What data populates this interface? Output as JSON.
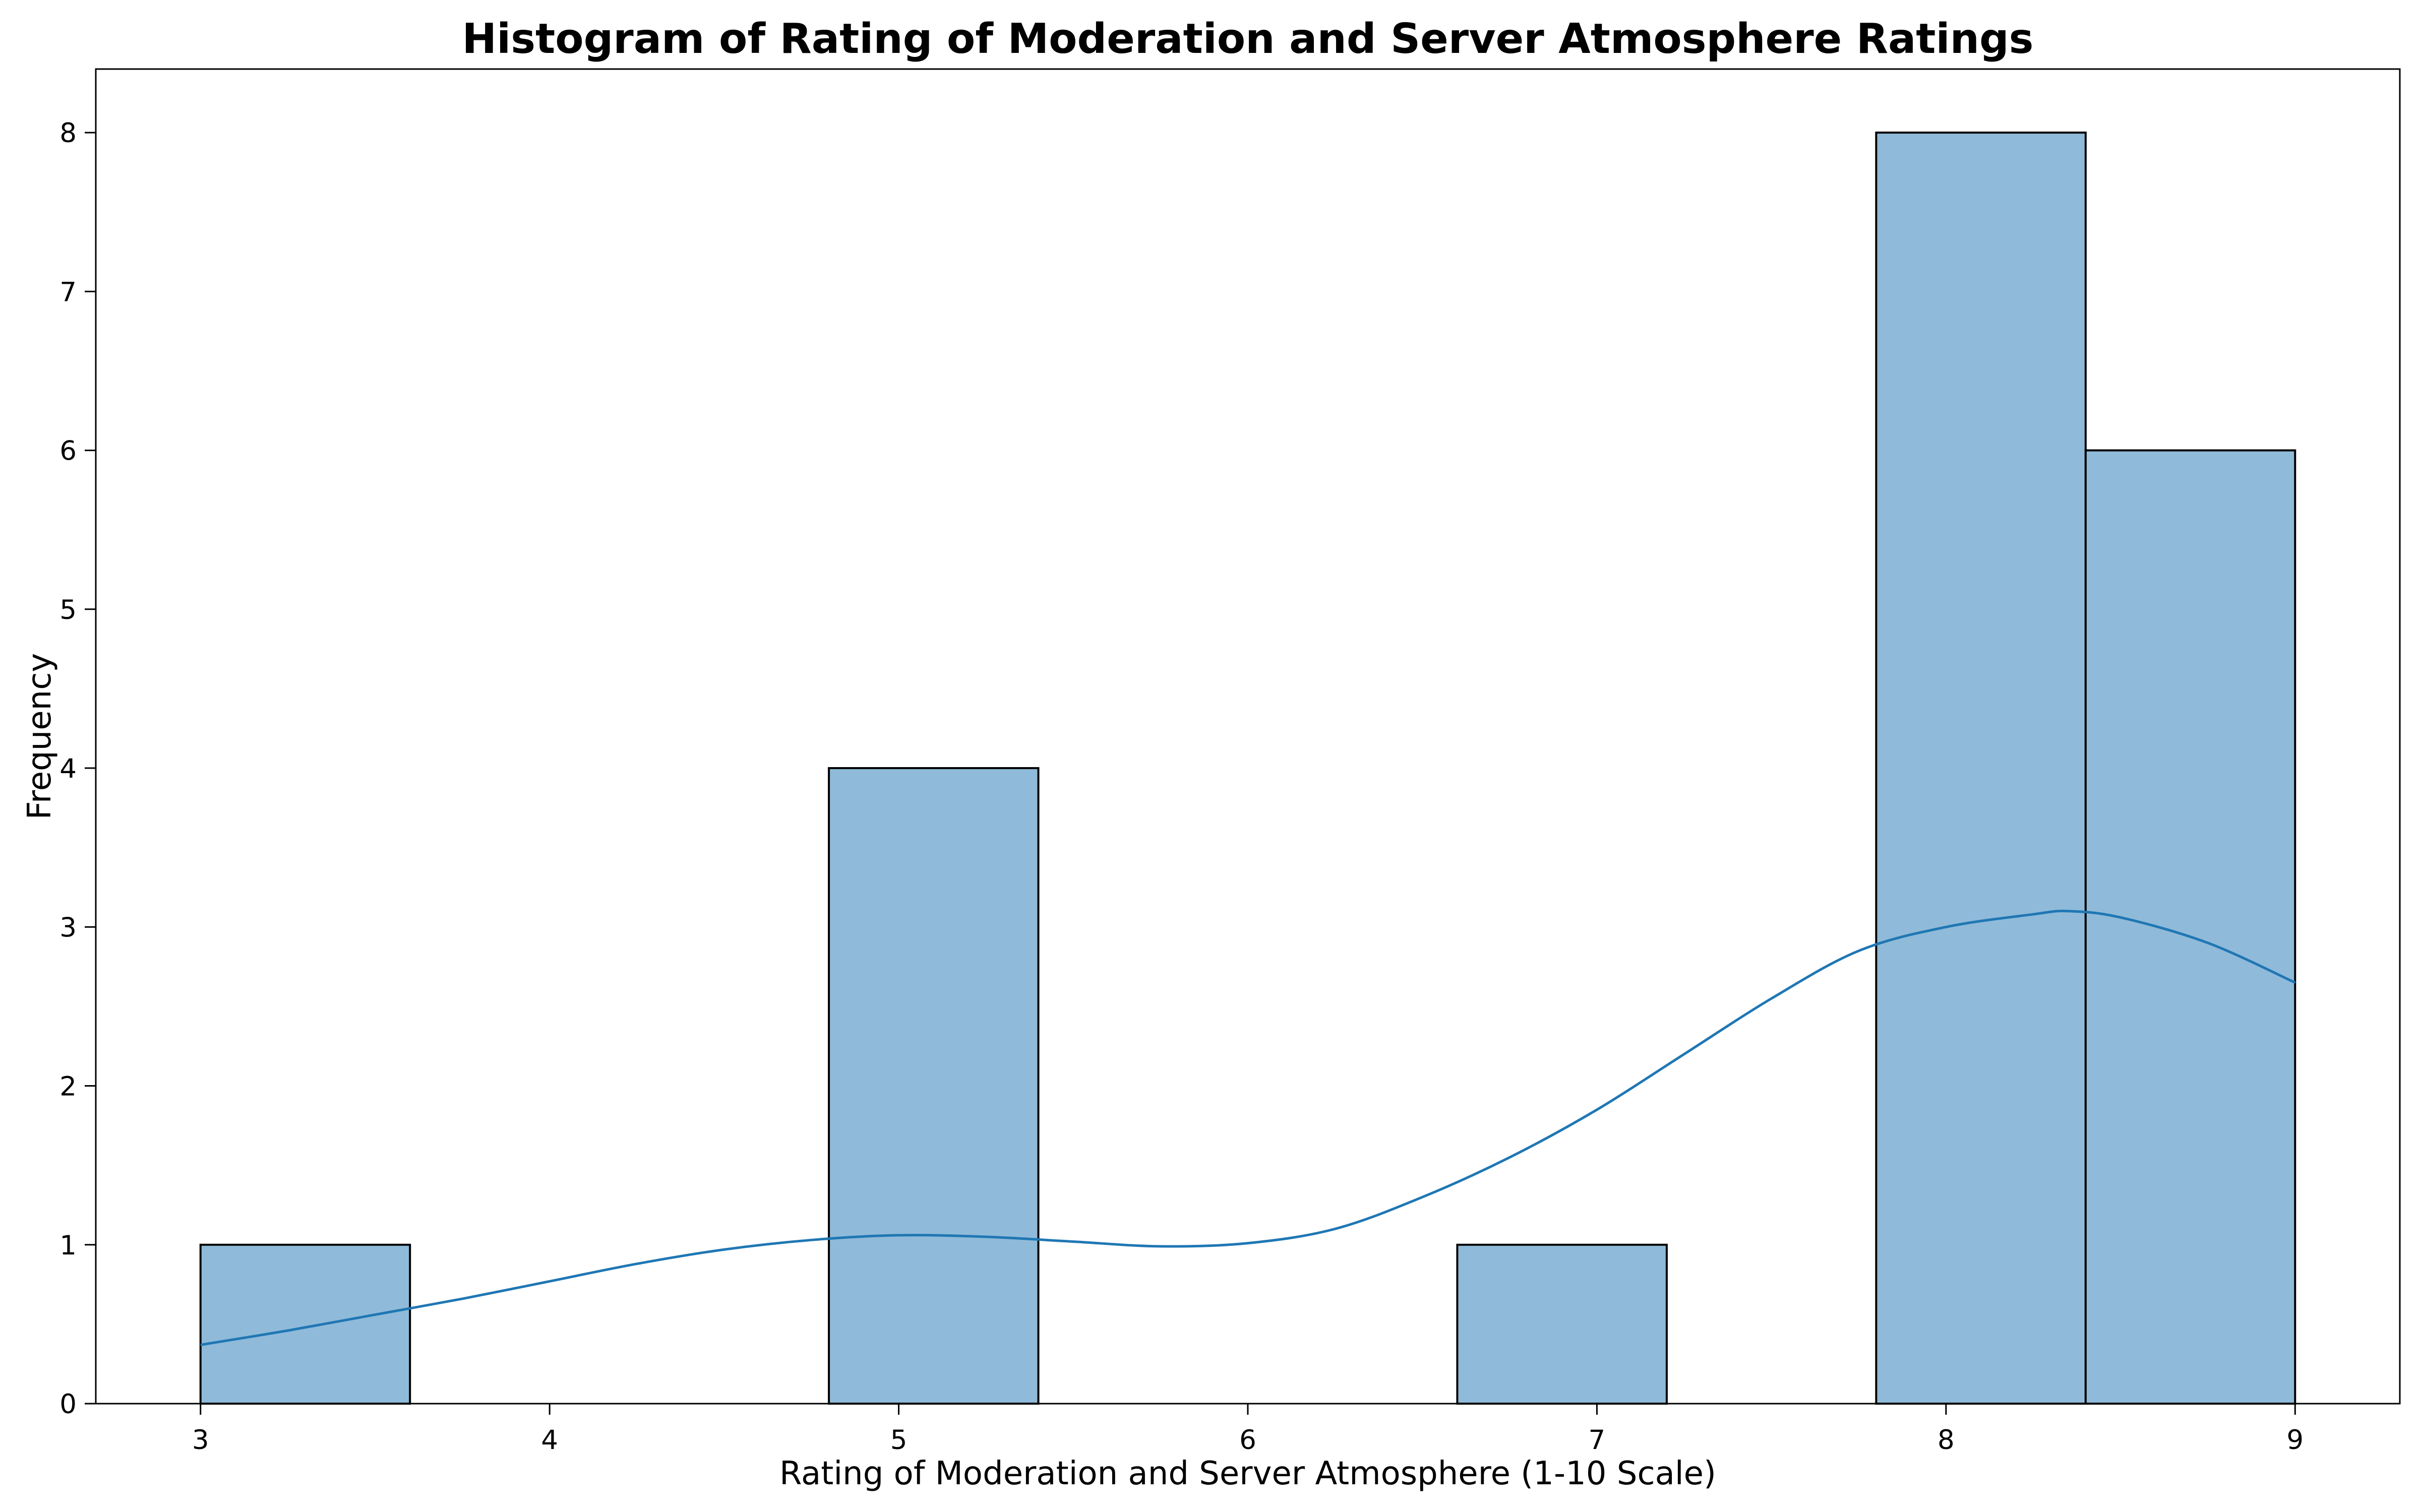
{
  "chart_data": {
    "type": "bar",
    "title": "Histogram of Rating of Moderation and Server Atmosphere Ratings",
    "xlabel": "Rating of Moderation and Server Atmosphere (1-10 Scale)",
    "ylabel": "Frequency",
    "xlim": [
      2.7,
      9.3
    ],
    "ylim": [
      0,
      8.4
    ],
    "x_ticks": [
      3,
      4,
      5,
      6,
      7,
      8,
      9
    ],
    "y_ticks": [
      0,
      1,
      2,
      3,
      4,
      5,
      6,
      7,
      8
    ],
    "bins": [
      {
        "start": 3.0,
        "end": 3.6,
        "count": 1
      },
      {
        "start": 3.6,
        "end": 4.2,
        "count": 0
      },
      {
        "start": 4.2,
        "end": 4.8,
        "count": 0
      },
      {
        "start": 4.8,
        "end": 5.4,
        "count": 4
      },
      {
        "start": 5.4,
        "end": 6.0,
        "count": 0
      },
      {
        "start": 6.0,
        "end": 6.6,
        "count": 0
      },
      {
        "start": 6.6,
        "end": 7.2,
        "count": 1
      },
      {
        "start": 7.2,
        "end": 7.8,
        "count": 0
      },
      {
        "start": 7.8,
        "end": 8.4,
        "count": 8
      },
      {
        "start": 8.4,
        "end": 9.0,
        "count": 6
      }
    ],
    "kde": {
      "x": [
        3.0,
        3.25,
        3.5,
        3.75,
        4.0,
        4.25,
        4.5,
        4.75,
        5.0,
        5.25,
        5.5,
        5.75,
        6.0,
        6.25,
        6.5,
        6.75,
        7.0,
        7.25,
        7.5,
        7.75,
        8.0,
        8.25,
        8.35,
        8.5,
        8.75,
        9.0
      ],
      "y": [
        0.37,
        0.46,
        0.56,
        0.66,
        0.77,
        0.88,
        0.97,
        1.03,
        1.06,
        1.05,
        1.02,
        0.99,
        1.01,
        1.1,
        1.3,
        1.55,
        1.85,
        2.2,
        2.55,
        2.85,
        3.0,
        3.08,
        3.1,
        3.06,
        2.9,
        2.65
      ]
    },
    "bar_color": "#8fbad9",
    "bar_edge_color": "#000000",
    "kde_color": "#1f77b4",
    "grid": false,
    "legend": "none"
  }
}
